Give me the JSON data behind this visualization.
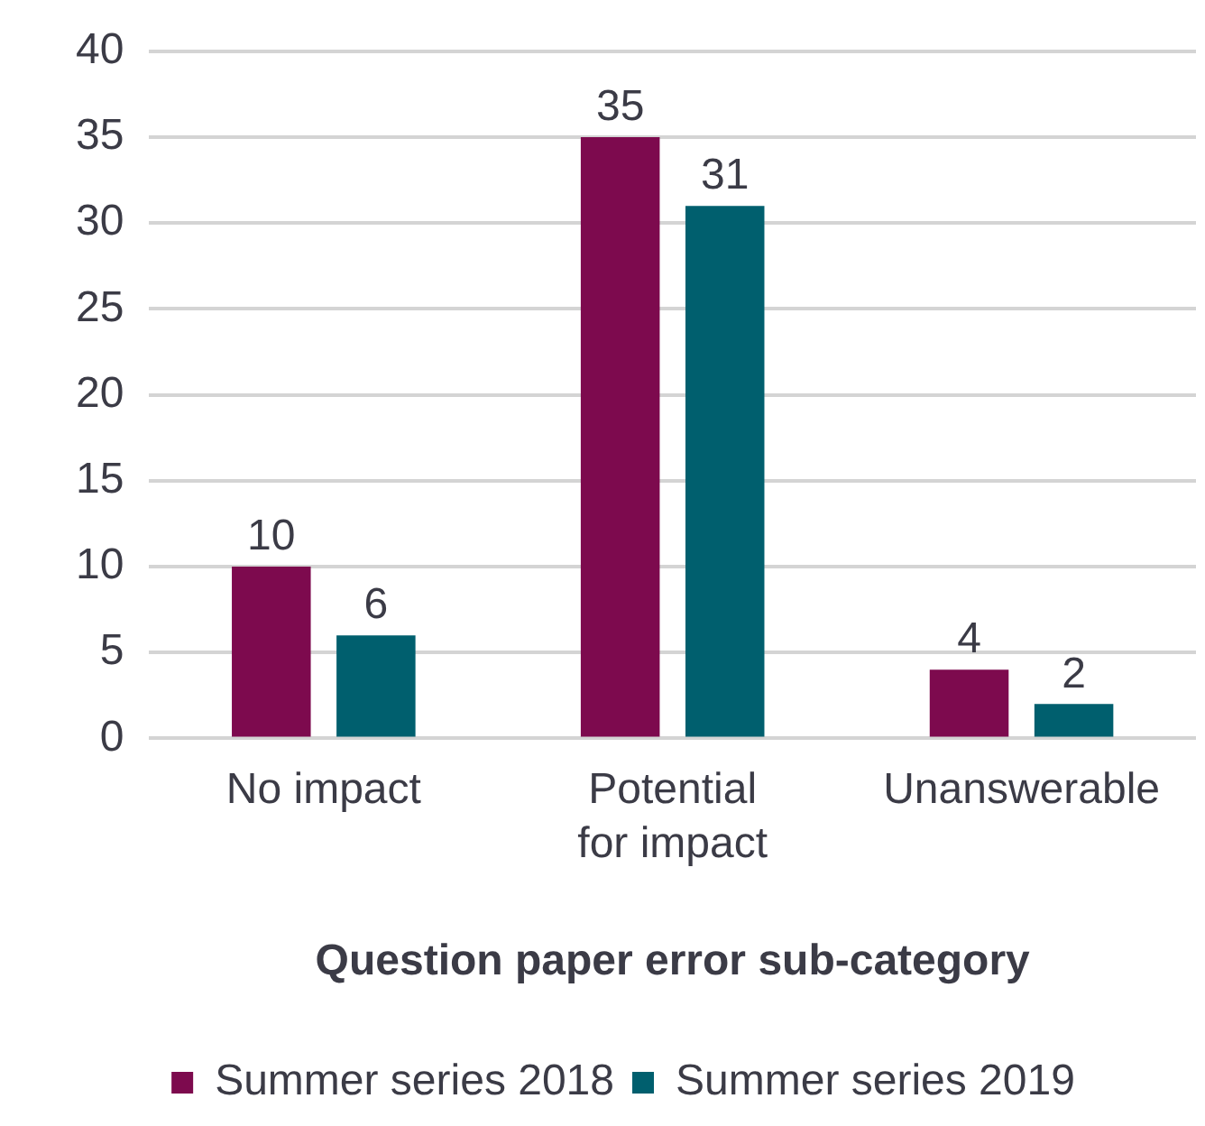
{
  "chart_data": {
    "type": "bar",
    "xlabel": "Question paper error sub-category",
    "categories": [
      "No impact",
      "Potential for impact",
      "Unanswerable"
    ],
    "series": [
      {
        "name": "Summer series 2018",
        "color": "#7d0a4e",
        "values": [
          10,
          35,
          4
        ]
      },
      {
        "name": "Summer series 2019",
        "color": "#005f6e",
        "values": [
          6,
          31,
          2
        ]
      }
    ],
    "ylim": [
      0,
      40
    ],
    "yticks": [
      0,
      5,
      10,
      15,
      20,
      25,
      30,
      35,
      40
    ],
    "grid": "y",
    "legend": "bottom",
    "data_labels": true
  }
}
